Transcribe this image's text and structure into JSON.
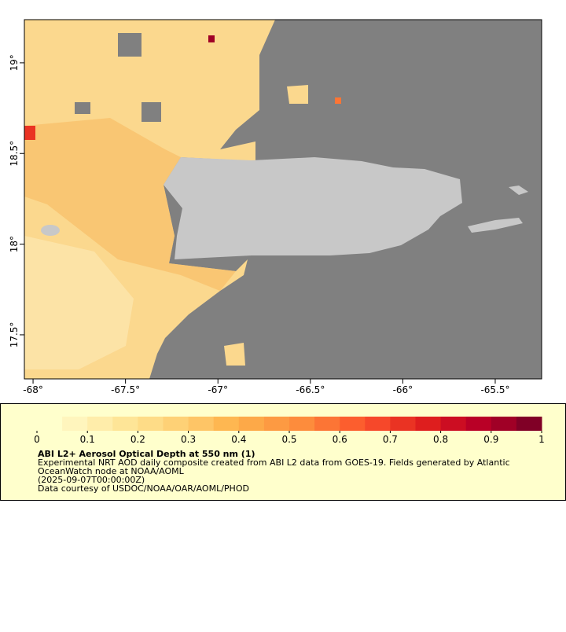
{
  "map": {
    "xlim": [
      -68.047,
      -65.249
    ],
    "ylim": [
      17.257,
      19.238
    ],
    "xticks": [
      {
        "value": -68,
        "label": "-68°"
      },
      {
        "value": -67.5,
        "label": "-67.5°"
      },
      {
        "value": -67,
        "label": "-67°"
      },
      {
        "value": -66.5,
        "label": "-66.5°"
      },
      {
        "value": -66,
        "label": "-66°"
      },
      {
        "value": -65.5,
        "label": "-65.5°"
      }
    ],
    "yticks": [
      {
        "value": 17.5,
        "label": "17.5°"
      },
      {
        "value": 18,
        "label": "18°"
      },
      {
        "value": 18.5,
        "label": "18.5°"
      },
      {
        "value": 19,
        "label": "19°"
      }
    ]
  },
  "colorbar": {
    "lim": [
      0,
      1
    ],
    "ticks": [
      0,
      0.1,
      0.2,
      0.3,
      0.4,
      0.5,
      0.6,
      0.7,
      0.8,
      0.9,
      1
    ],
    "colors": [
      "#ffffcc",
      "#fff5bd",
      "#ffedaa",
      "#fee597",
      "#fedc87",
      "#fed176",
      "#fec566",
      "#feb751",
      "#fda948",
      "#fd9a42",
      "#fd8c3c",
      "#fc7535",
      "#fc5e2e",
      "#f6482a",
      "#ea3323",
      "#de1e1e",
      "#cc0d22",
      "#b90026",
      "#a00026",
      "#800026"
    ]
  },
  "caption": {
    "title": "ABI L2+ Aerosol Optical Depth at 550 nm (1)",
    "lines": [
      "Experimental NRT AOD daily composite created from ABI L2 data from GOES-19. Fields generated by Atlantic",
      "OceanWatch node at NOAA/AOML",
      "(2025-09-07T00:00:00Z)",
      "Data courtesy of USDOC/NOAA/OAR/AOML/PHOD"
    ]
  }
}
